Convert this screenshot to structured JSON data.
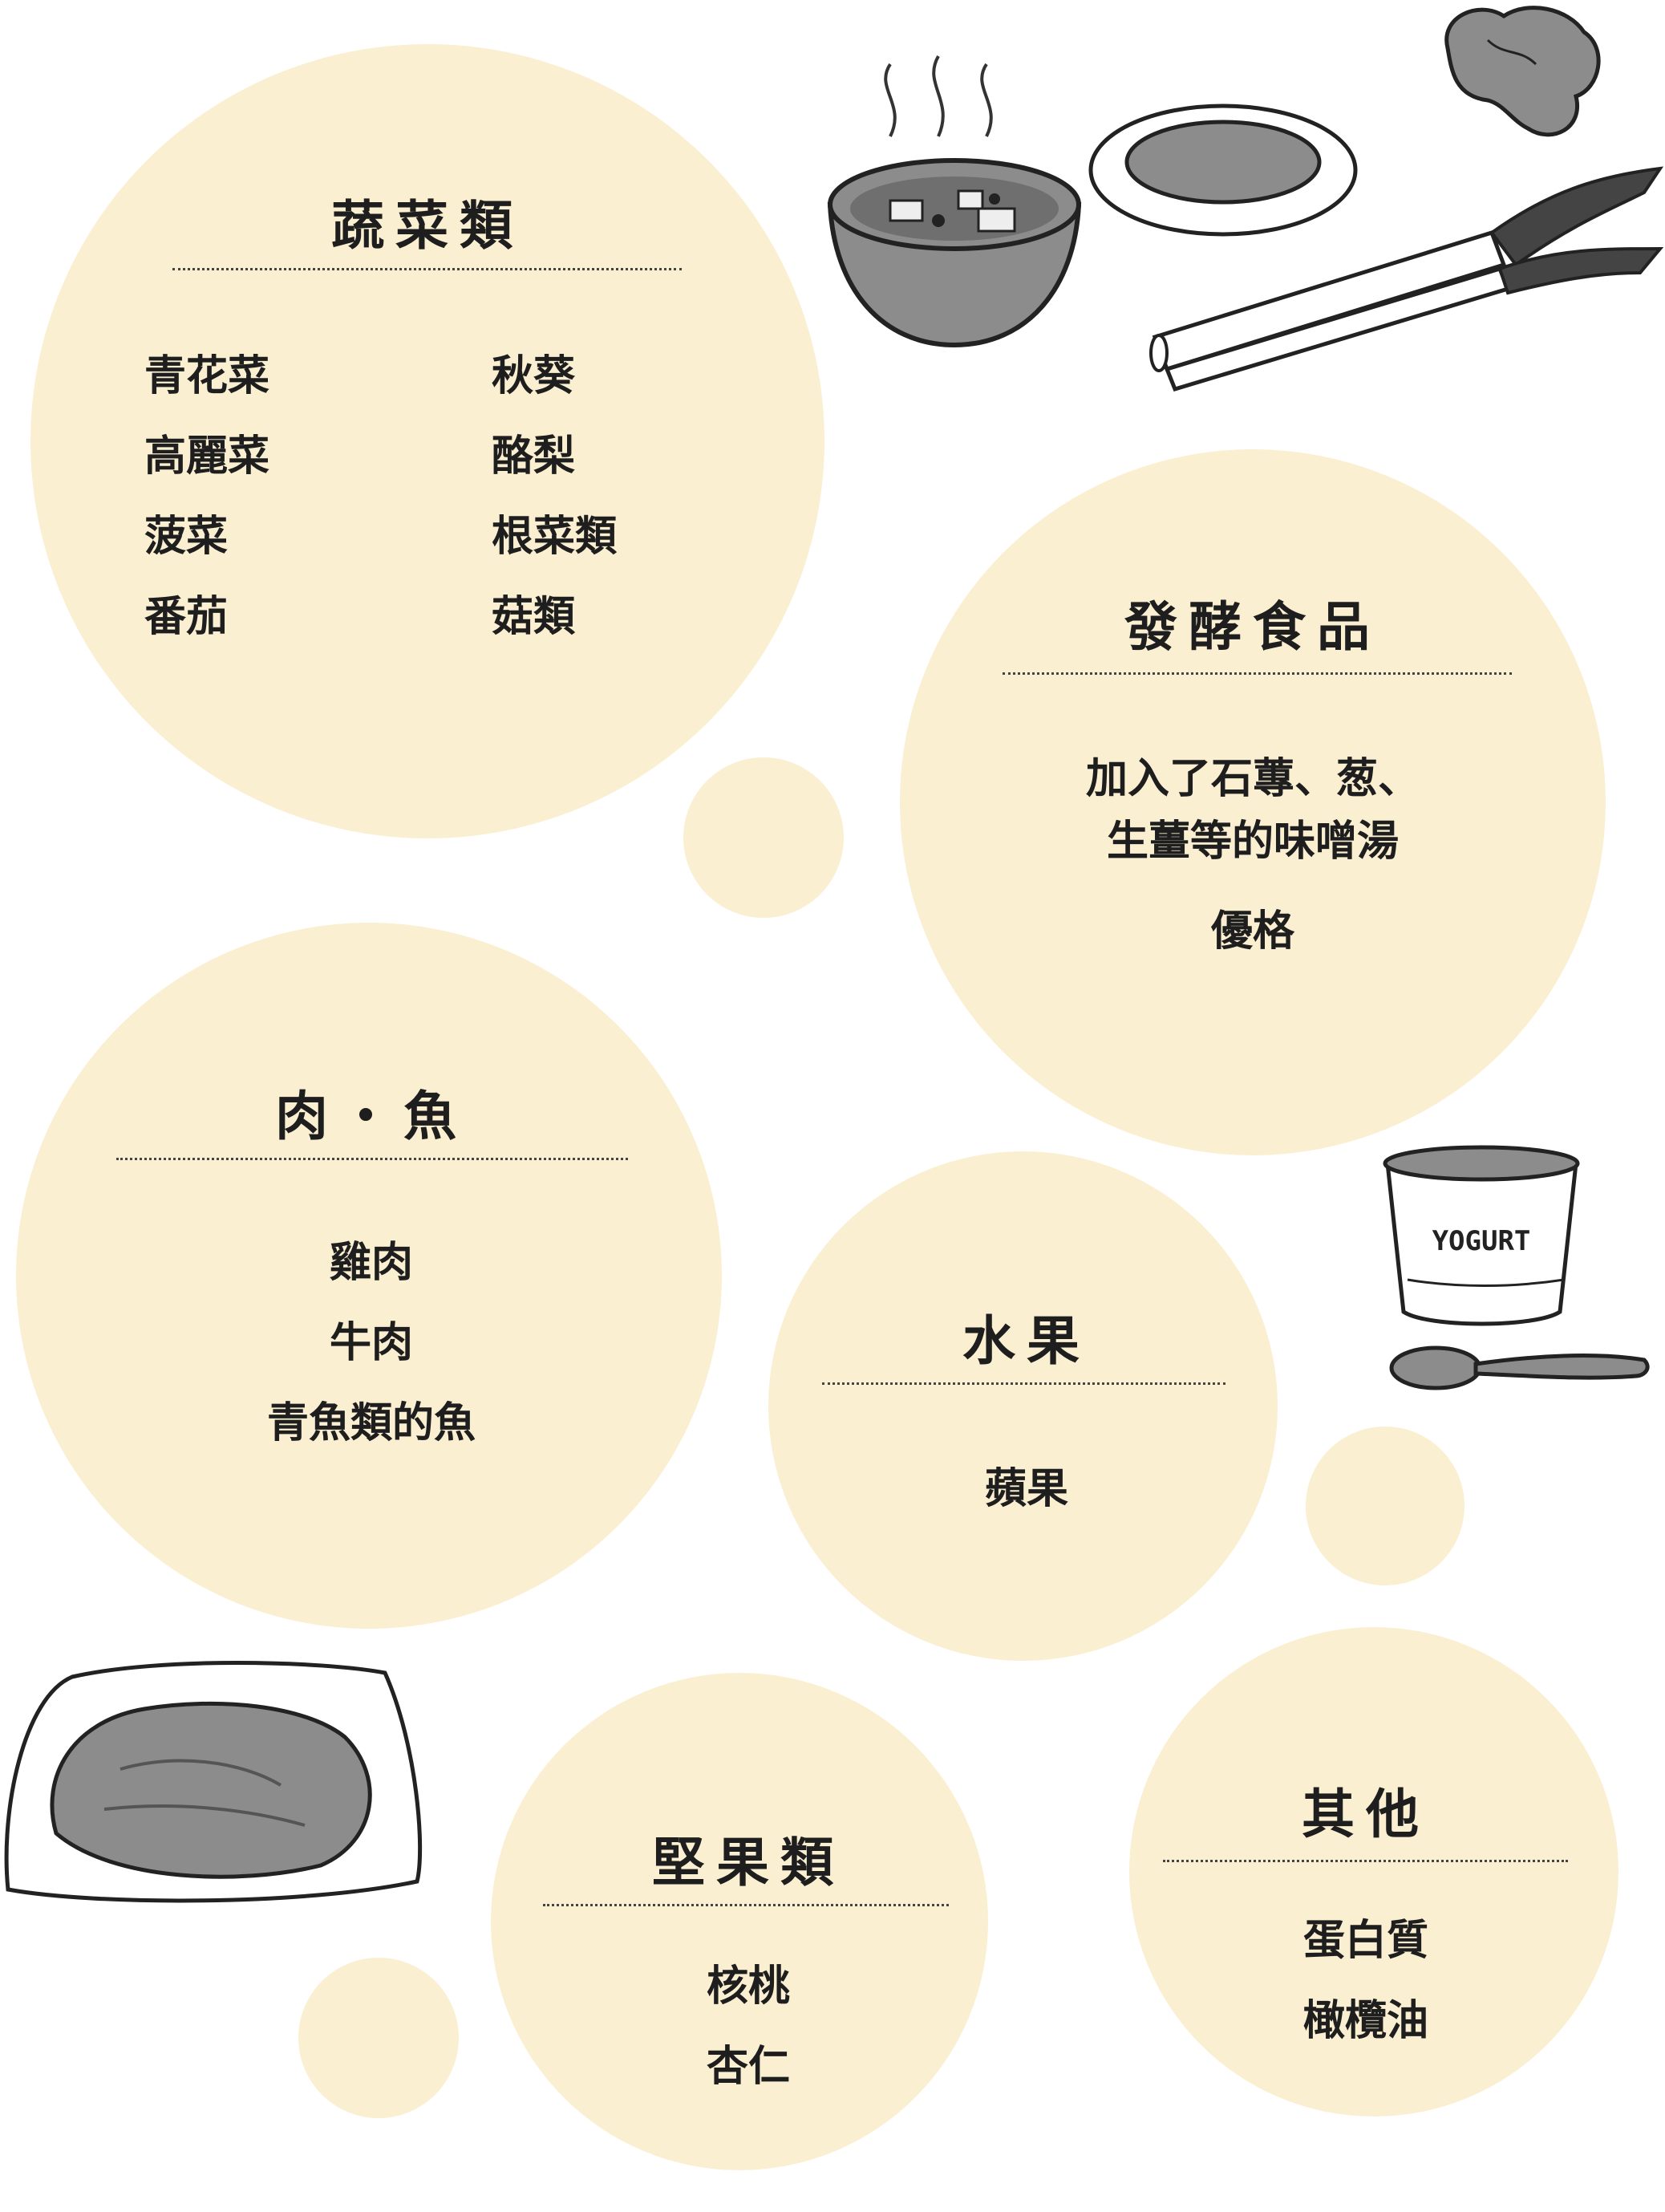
{
  "vegetables": {
    "title": "蔬菜類",
    "left_items": [
      "青花菜",
      "高麗菜",
      "菠菜",
      "番茄"
    ],
    "right_items": [
      "秋葵",
      "酪梨",
      "根菜類",
      "菇類"
    ]
  },
  "fermented": {
    "title": "發酵食品",
    "items": [
      "加入了石蓴、葱、",
      "生薑等的味噌湯",
      "優格"
    ]
  },
  "meat_fish": {
    "title": "肉・魚",
    "items": [
      "雞肉",
      "牛肉",
      "青魚類的魚"
    ]
  },
  "fruit": {
    "title": "水果",
    "items": [
      "蘋果"
    ]
  },
  "nuts": {
    "title": "堅果類",
    "items": [
      "核桃",
      "杏仁"
    ]
  },
  "others": {
    "title": "其他",
    "items": [
      "蛋白質",
      "橄欖油"
    ]
  },
  "illustrations": {
    "yogurt_label": "YOGURT",
    "icons": [
      "miso-soup-icon",
      "natto-plate-icon",
      "ginger-icon",
      "green-onion-icon",
      "yogurt-cup-icon",
      "spoon-icon",
      "steak-plate-icon"
    ]
  },
  "colors": {
    "circle_fill": "#fbefd2",
    "text": "#1e1e1e",
    "illustration_gray": "#8c8c8c"
  }
}
